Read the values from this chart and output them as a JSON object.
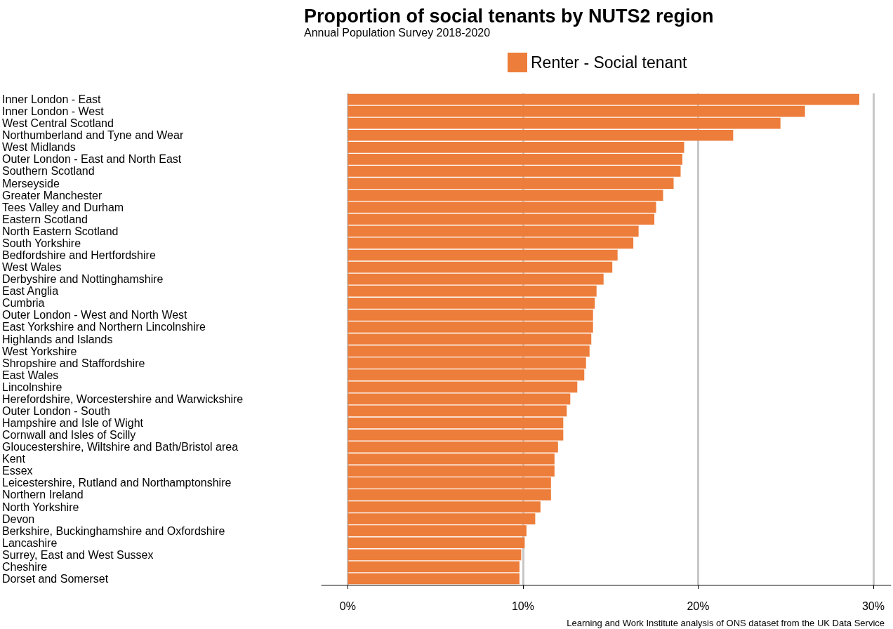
{
  "chart_data": {
    "type": "bar",
    "orientation": "horizontal",
    "title": "Proportion of social tenants by NUTS2 region",
    "subtitle": "Annual Population Survey 2018-2020",
    "categories": [
      "Inner London - East",
      "Inner London - West",
      "West Central Scotland",
      "Northumberland and Tyne and Wear",
      "West Midlands",
      "Outer London - East and North East",
      "Southern Scotland",
      "Merseyside",
      "Greater Manchester",
      "Tees Valley and Durham",
      "Eastern Scotland",
      "North Eastern Scotland",
      "South Yorkshire",
      "Bedfordshire and Hertfordshire",
      "West Wales",
      "Derbyshire and Nottinghamshire",
      "East Anglia",
      "Cumbria",
      "Outer London - West and North West",
      "East Yorkshire and Northern Lincolnshire",
      "Highlands and Islands",
      "West Yorkshire",
      "Shropshire and Staffordshire",
      "East Wales",
      "Lincolnshire",
      "Herefordshire, Worcestershire and Warwickshire",
      "Outer London - South",
      "Hampshire and Isle of Wight",
      "Cornwall and Isles of Scilly",
      "Gloucestershire, Wiltshire and Bath/Bristol area",
      "Kent",
      "Essex",
      "Leicestershire, Rutland and Northamptonshire",
      "Northern Ireland",
      "North Yorkshire",
      "Devon",
      "Berkshire, Buckinghamshire and Oxfordshire",
      "Lancashire",
      "Surrey, East and West Sussex",
      "Cheshire",
      "Dorset and Somerset"
    ],
    "series": [
      {
        "name": "Renter - Social tenant",
        "color": "#ed7d3a",
        "values": [
          29.2,
          26.1,
          24.7,
          22.0,
          19.2,
          19.1,
          19.0,
          18.6,
          18.0,
          17.6,
          17.5,
          16.6,
          16.3,
          15.4,
          15.1,
          14.6,
          14.2,
          14.1,
          14.0,
          14.0,
          13.9,
          13.8,
          13.6,
          13.5,
          13.1,
          12.7,
          12.5,
          12.3,
          12.3,
          12.0,
          11.8,
          11.8,
          11.6,
          11.6,
          11.0,
          10.7,
          10.2,
          10.1,
          9.9,
          9.8,
          9.8
        ]
      }
    ],
    "xlim": [
      -1.5,
      31
    ],
    "xticks": [
      {
        "value": 0,
        "label": "0%"
      },
      {
        "value": 10,
        "label": "10%"
      },
      {
        "value": 20,
        "label": "20%"
      },
      {
        "value": 30,
        "label": "30%"
      }
    ],
    "grid": "x",
    "legend": "top",
    "annotations": [
      "Learning and Work Institute analysis of ONS dataset from the UK Data Service"
    ]
  }
}
